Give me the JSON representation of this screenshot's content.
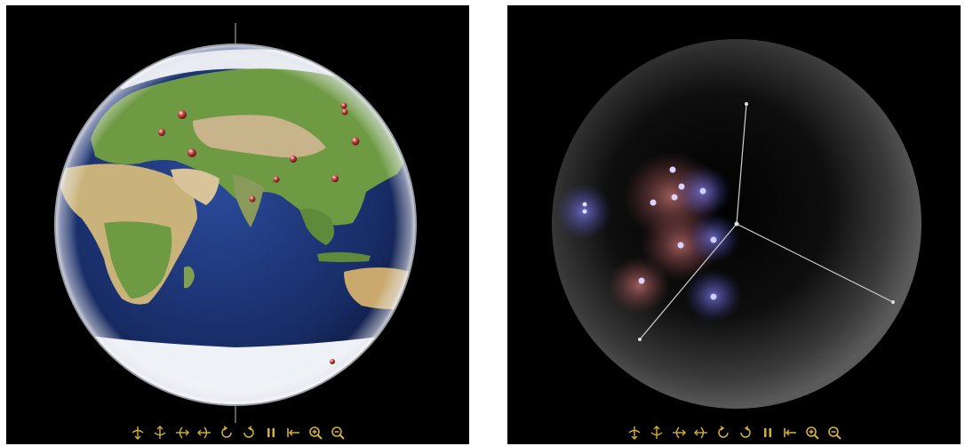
{
  "left_view": {
    "title": "",
    "accent_color": "#c8a44a",
    "ocean_color": "#1b2f6a",
    "land_color": "#5b8a3a",
    "marker_color": "#c43c3c"
  },
  "right_view": {
    "title": "",
    "sphere_color": "#2a2a2a",
    "red_glow_color": "#c86a6a",
    "blue_glow_color": "#6a6ad8",
    "axis_color": "#cfcfcf"
  },
  "toolbar": {
    "icon_color": "#d4b13a",
    "buttons": [
      {
        "name": "rotate-up-icon",
        "tooltip": ""
      },
      {
        "name": "rotate-down-icon",
        "tooltip": ""
      },
      {
        "name": "rotate-left-icon",
        "tooltip": ""
      },
      {
        "name": "rotate-right-icon",
        "tooltip": ""
      },
      {
        "name": "rotate-ccw-icon",
        "tooltip": ""
      },
      {
        "name": "rotate-cw-icon",
        "tooltip": ""
      },
      {
        "name": "pause-icon",
        "tooltip": ""
      },
      {
        "name": "reset-icon",
        "tooltip": ""
      },
      {
        "name": "zoom-in-icon",
        "tooltip": ""
      },
      {
        "name": "zoom-out-icon",
        "tooltip": ""
      }
    ]
  }
}
